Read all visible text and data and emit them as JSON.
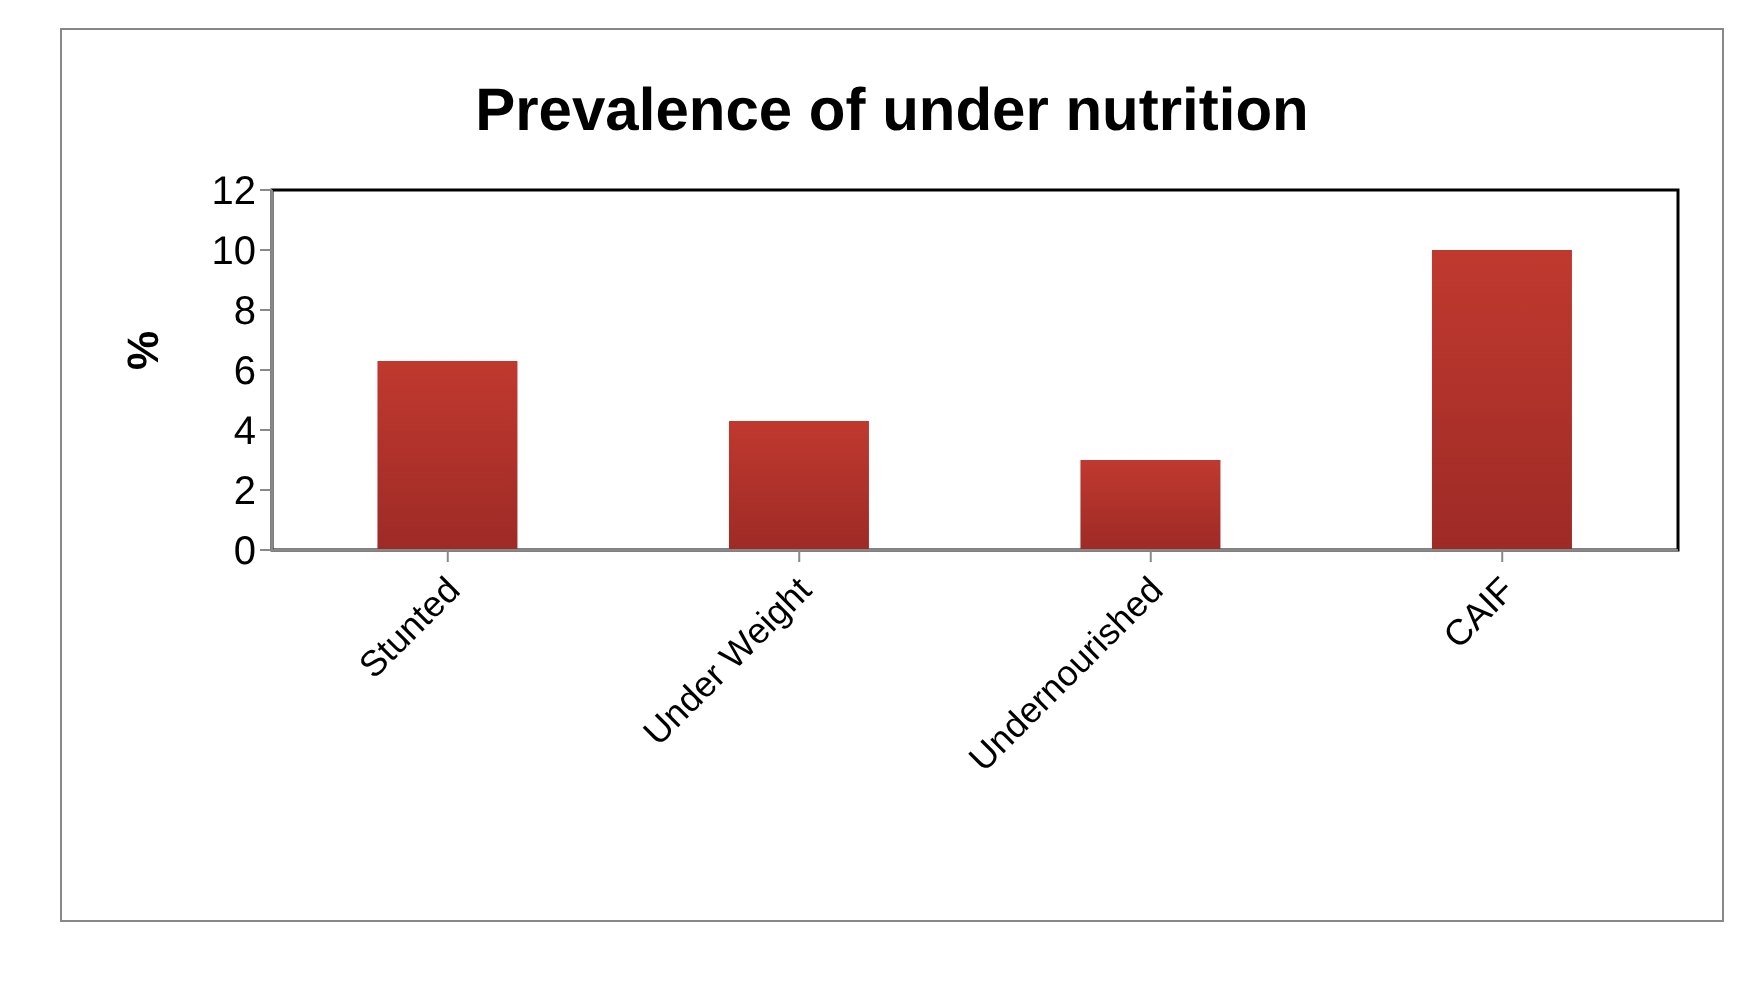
{
  "chart_data": {
    "type": "bar",
    "title": "Prevalence of under nutrition",
    "ylabel": "%",
    "categories": [
      "Stunted",
      "Under Weight",
      "Undernourished",
      "CAIF"
    ],
    "values": [
      6.3,
      4.3,
      3.0,
      10.0
    ],
    "color": "#c0392f",
    "ylim": [
      0,
      12
    ],
    "yticks": [
      0,
      2,
      4,
      6,
      8,
      10,
      12
    ],
    "grid": false
  }
}
